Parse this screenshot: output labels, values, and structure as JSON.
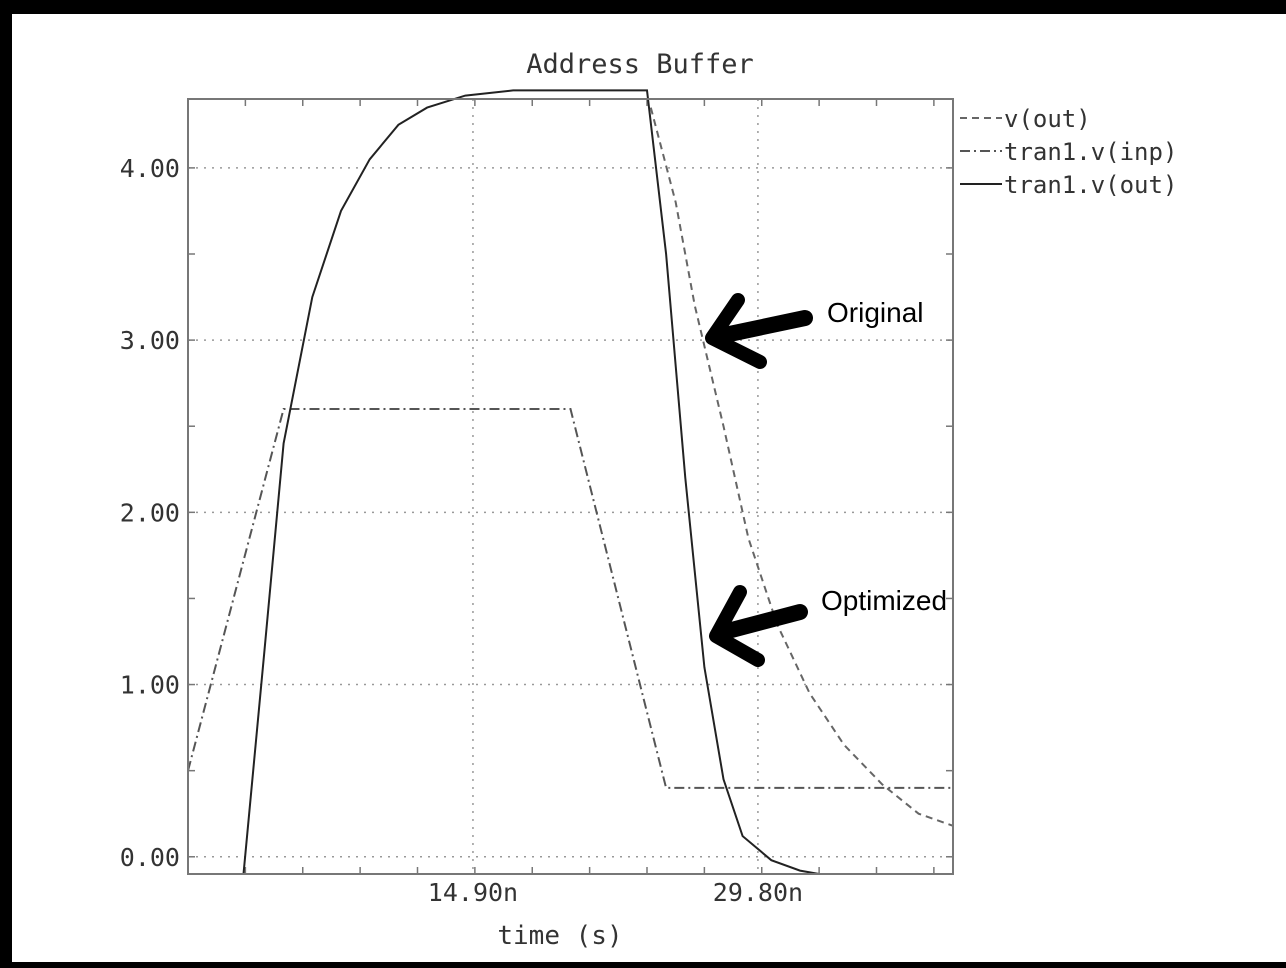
{
  "chart_data": {
    "type": "line",
    "title": "Address Buffer",
    "xlabel": "time (s)",
    "ylabel": "",
    "xlim": [
      0,
      40
    ],
    "ylim": [
      -0.1,
      4.4
    ],
    "x_ticks": [
      {
        "value": 14.9,
        "label": "14.90n"
      },
      {
        "value": 29.8,
        "label": "29.80n"
      }
    ],
    "y_ticks": [
      {
        "value": 0,
        "label": "0.00"
      },
      {
        "value": 1,
        "label": "1.00"
      },
      {
        "value": 2,
        "label": "2.00"
      },
      {
        "value": 3,
        "label": "3.00"
      },
      {
        "value": 4,
        "label": "4.00"
      }
    ],
    "grid": true,
    "legend_position": "right of plot, top",
    "series": [
      {
        "name": "v(out)",
        "style": "dashed",
        "color": "#666666",
        "x": [
          24.2,
          25.5,
          26.5,
          28.0,
          29.3,
          30.8,
          32.5,
          34.3,
          36.3,
          38.2,
          40.0
        ],
        "y": [
          4.35,
          3.8,
          3.2,
          2.5,
          1.85,
          1.35,
          0.95,
          0.65,
          0.42,
          0.25,
          0.18
        ]
      },
      {
        "name": "tran1.v(inp)",
        "style": "dash-dot",
        "color": "#555555",
        "x": [
          0.0,
          5.0,
          6.0,
          20.0,
          25.0,
          40.0
        ],
        "y": [
          0.5,
          2.6,
          2.6,
          2.6,
          0.4,
          0.4
        ]
      },
      {
        "name": "tran1.v(out)",
        "style": "solid",
        "color": "#222222",
        "x": [
          2.9,
          4.0,
          5.0,
          6.5,
          8.0,
          9.5,
          11.0,
          12.5,
          14.5,
          17.0,
          20.5,
          24.0,
          25.0,
          26.0,
          27.0,
          28.0,
          29.0,
          30.5,
          32.0,
          33.0
        ],
        "y": [
          -0.1,
          1.2,
          2.4,
          3.25,
          3.75,
          4.05,
          4.25,
          4.35,
          4.42,
          4.45,
          4.45,
          4.45,
          3.5,
          2.2,
          1.1,
          0.45,
          0.12,
          -0.02,
          -0.08,
          -0.1
        ]
      }
    ],
    "annotations": [
      {
        "text": "Original",
        "target_series": "v(out)"
      },
      {
        "text": "Optimized",
        "target_series": "tran1.v(out)"
      }
    ]
  }
}
